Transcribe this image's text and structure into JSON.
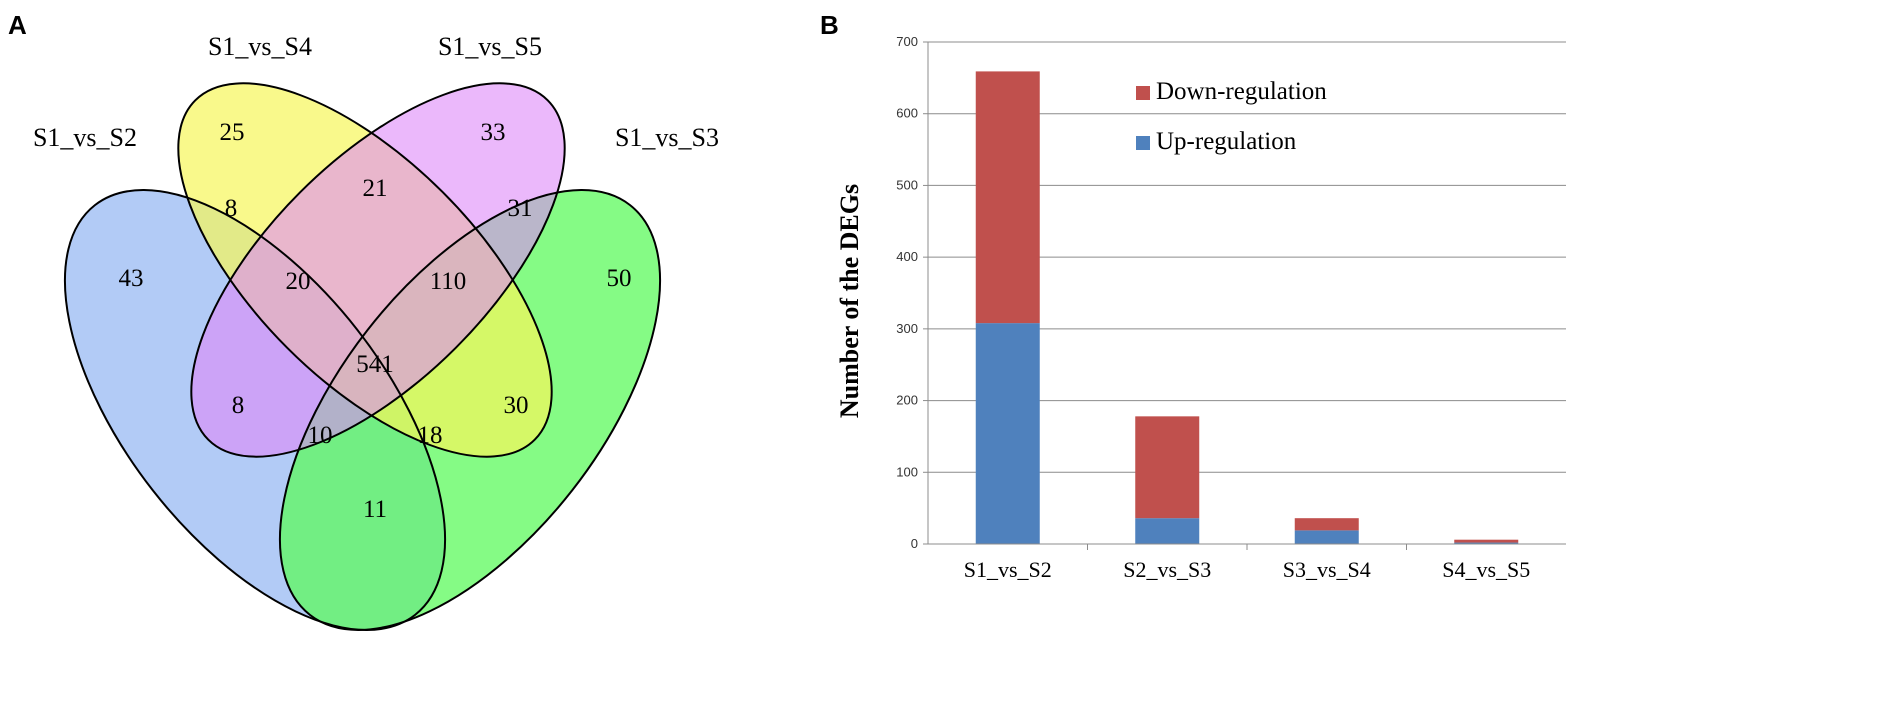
{
  "panels": {
    "a": "A",
    "b": "B"
  },
  "venn": {
    "sets": [
      "S1_vs_S2",
      "S1_vs_S4",
      "S1_vs_S5",
      "S1_vs_S3"
    ],
    "set_colors": [
      "#a5c2f4",
      "#f6f75a",
      "#dd88f9",
      "#5cf95c"
    ],
    "regions": {
      "only_s2": "43",
      "only_s4": "25",
      "only_s5": "33",
      "only_s3": "50",
      "s2_s4": "8",
      "s4_s5": "21",
      "s5_s3": "31",
      "s2_s4_s5": "20",
      "s4_s5_s3": "110",
      "all": "541",
      "s2_s5": "8",
      "s4_s3": "30",
      "s2_s5_s3": "10",
      "s2_s4_s3": "18",
      "s2_s3": "11"
    }
  },
  "chart_data": {
    "type": "bar",
    "stacked": true,
    "title": "",
    "xlabel": "",
    "ylabel": "Number of the DEGs",
    "categories": [
      "S1_vs_S2",
      "S2_vs_S3",
      "S3_vs_S4",
      "S4_vs_S5"
    ],
    "series": [
      {
        "name": "Up-regulation",
        "color": "#4f81bd",
        "values": [
          308,
          36,
          19,
          2
        ]
      },
      {
        "name": "Down-regulation",
        "color": "#c0504d",
        "values": [
          351,
          142,
          17,
          4
        ]
      }
    ],
    "legend_order": [
      "Down-regulation",
      "Up-regulation"
    ],
    "legend_position": "top-right",
    "ylim": [
      0,
      700
    ],
    "yticks": [
      "0",
      "100",
      "200",
      "300",
      "400",
      "500",
      "600",
      "700"
    ],
    "grid": true
  }
}
